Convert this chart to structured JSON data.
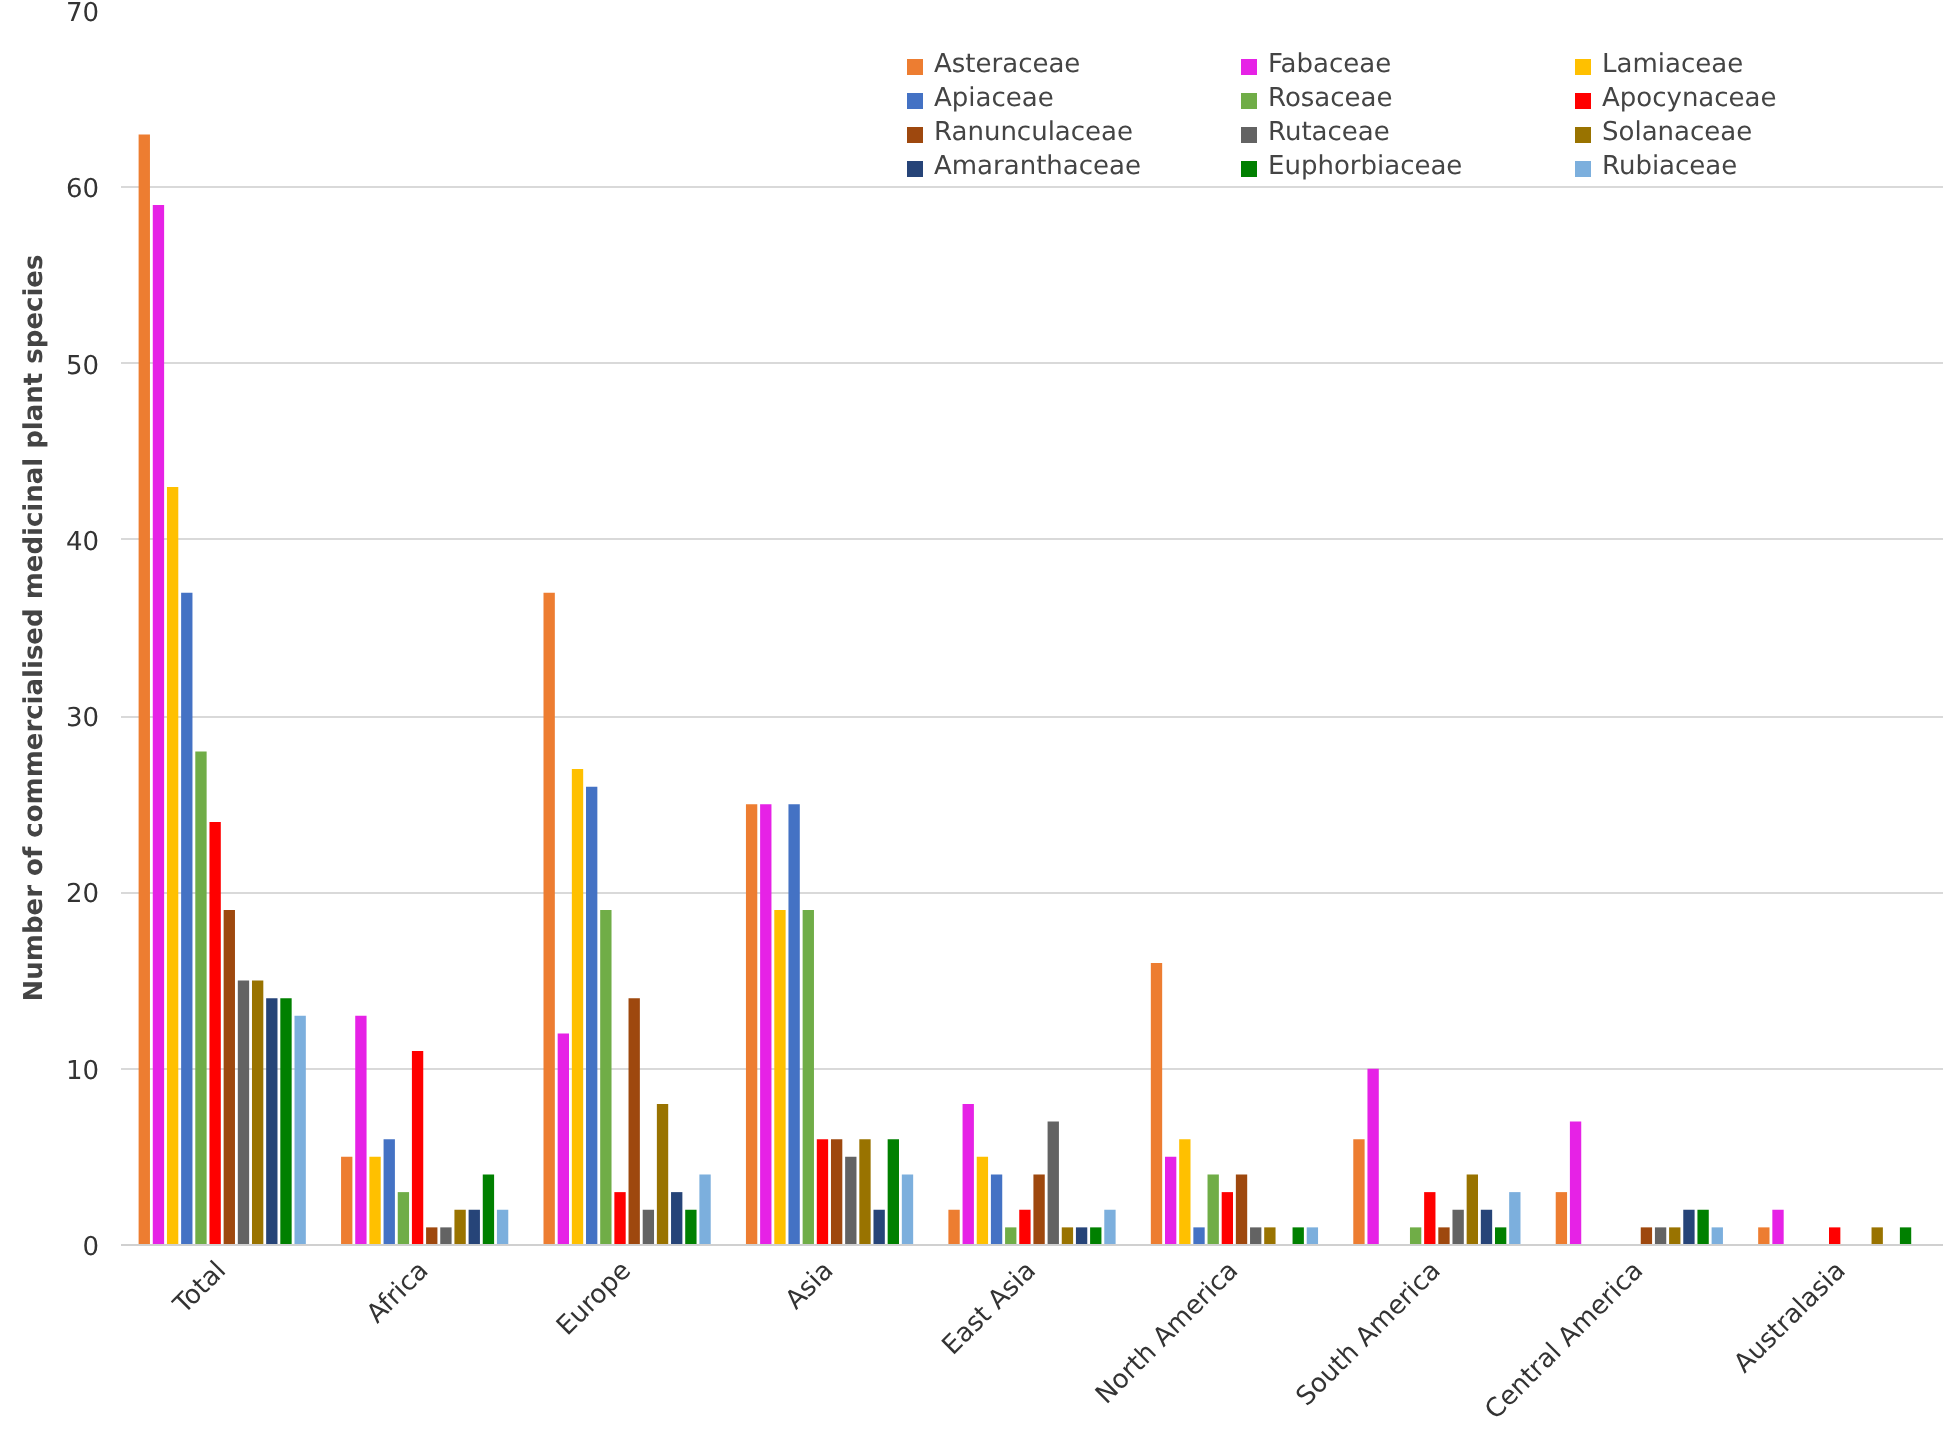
{
  "chart_data": {
    "type": "bar",
    "ylabel": "Number of commercialised medicinal plant species",
    "categories": [
      "Total",
      "Africa",
      "Europe",
      "Asia",
      "East Asia",
      "North America",
      "South America",
      "Central America",
      "Australasia"
    ],
    "ylim": [
      0,
      70
    ],
    "yticks": [
      0,
      10,
      20,
      30,
      40,
      50,
      60,
      70
    ],
    "grid": "y",
    "legend": "top right",
    "series": [
      {
        "name": "Asteraceae",
        "color": "#ed7d31",
        "values": [
          63,
          5,
          37,
          25,
          2,
          16,
          6,
          3,
          1
        ]
      },
      {
        "name": "Fabaceae",
        "color": "#e622e6",
        "values": [
          59,
          13,
          12,
          25,
          8,
          5,
          10,
          7,
          2
        ]
      },
      {
        "name": "Lamiaceae",
        "color": "#ffc000",
        "values": [
          43,
          5,
          27,
          19,
          5,
          6,
          0,
          0,
          0
        ]
      },
      {
        "name": "Apiaceae",
        "color": "#4472c4",
        "values": [
          37,
          6,
          26,
          25,
          4,
          1,
          0,
          0,
          0
        ]
      },
      {
        "name": "Rosaceae",
        "color": "#70ad47",
        "values": [
          28,
          3,
          19,
          19,
          1,
          4,
          1,
          0,
          0
        ]
      },
      {
        "name": "Apocynaceae",
        "color": "#ff0000",
        "values": [
          24,
          11,
          3,
          6,
          2,
          3,
          3,
          0,
          1
        ]
      },
      {
        "name": "Ranunculaceae",
        "color": "#9e480e",
        "values": [
          19,
          1,
          14,
          6,
          4,
          4,
          1,
          1,
          0
        ]
      },
      {
        "name": "Rutaceae",
        "color": "#636363",
        "values": [
          15,
          1,
          2,
          5,
          7,
          1,
          2,
          1,
          0
        ]
      },
      {
        "name": "Solanaceae",
        "color": "#997300",
        "values": [
          15,
          2,
          8,
          6,
          1,
          1,
          4,
          1,
          1
        ]
      },
      {
        "name": "Amaranthaceae",
        "color": "#264478",
        "values": [
          14,
          2,
          3,
          2,
          1,
          0,
          2,
          2,
          0
        ]
      },
      {
        "name": "Euphorbiaceae",
        "color": "#008000",
        "values": [
          14,
          4,
          2,
          6,
          1,
          1,
          1,
          2,
          1
        ]
      },
      {
        "name": "Rubiaceae",
        "color": "#7cafdd",
        "values": [
          13,
          2,
          4,
          4,
          2,
          1,
          3,
          1,
          0
        ]
      }
    ]
  }
}
